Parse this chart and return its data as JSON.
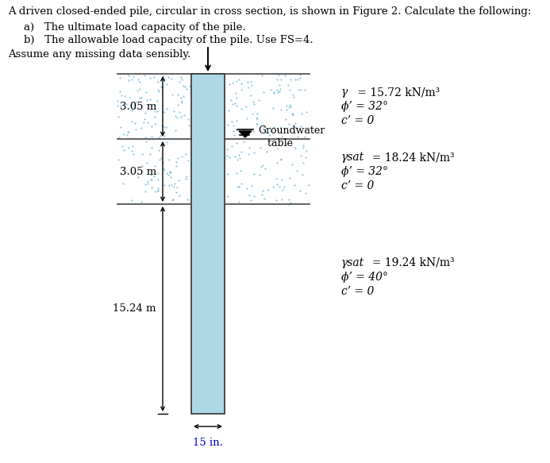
{
  "title_text": "A driven closed-ended pile, circular in cross section, is shown in Figure 2. Calculate the following:",
  "item_a": "a)   The ultimate load capacity of the pile.",
  "item_b": "b)   The allowable load capacity of the pile. Use FS=4.",
  "assume_text": "Assume any missing data sensibly.",
  "dim1": "3.05 m",
  "dim2": "3.05 m",
  "dim3": "15.24 m",
  "dim4": "15 in.",
  "pile_color": "#add8e6",
  "soil_color": "#c8e6f5",
  "background": "#ffffff",
  "l1_gamma": "γ",
  "l1_gamma_val": " = 15.72 kN/m³",
  "l1_phi": "ϕ’ = 32°",
  "l1_c": "c’ = 0",
  "l2_gamma": "γsat",
  "l2_gamma_val": "  = 18.24 kN/m³",
  "l2_phi": "ϕ’ = 32°",
  "l2_c": "c’ = 0",
  "l3_gamma": "γsat",
  "l3_gamma_val": "  = 19.24 kN/m³",
  "l3_phi": "ϕ’ = 40°",
  "l3_c": "c’ = 0",
  "gw1": "Groundwater",
  "gw2": "   table"
}
